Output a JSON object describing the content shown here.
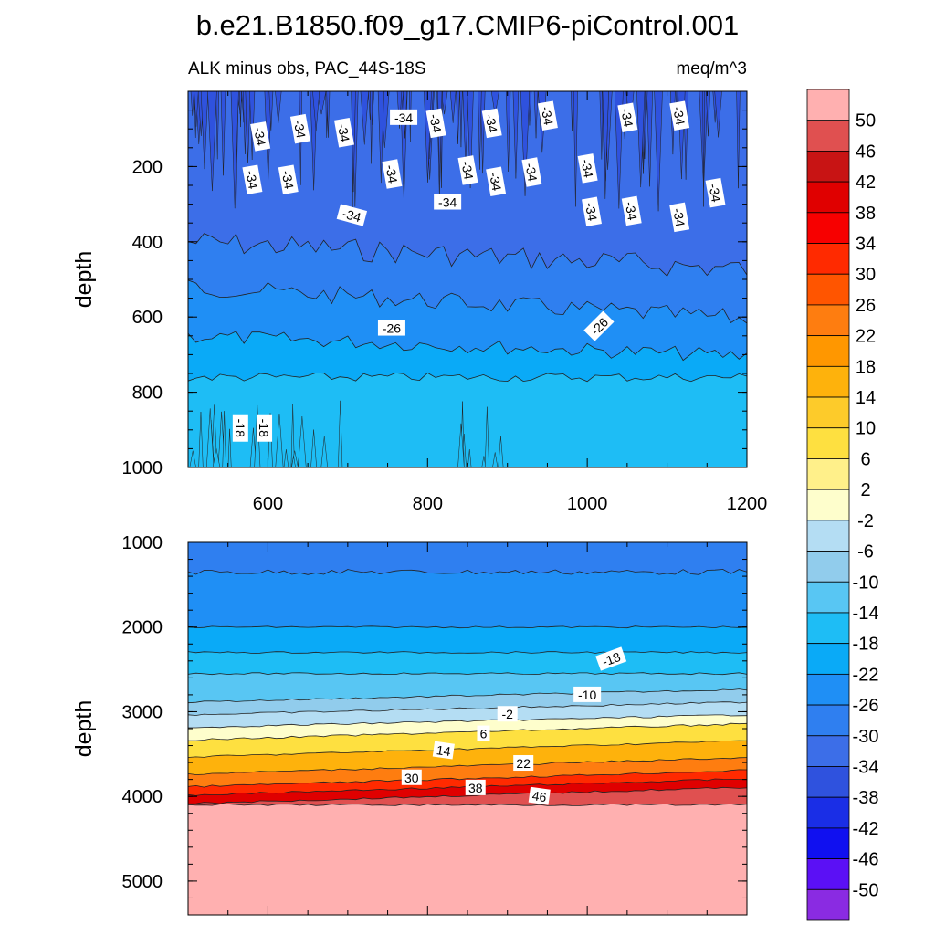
{
  "figure": {
    "title": "b.e21.B1850.f09_g17.CMIP6-piControl.001",
    "subtitle_left": "ALK minus obs, PAC_44S-18S",
    "subtitle_right": "meq/m^3"
  },
  "colors": {
    "levels": [
      -54,
      -50,
      -46,
      -42,
      -38,
      -34,
      -30,
      -26,
      -22,
      -18,
      -14,
      -10,
      -6,
      -2,
      2,
      6,
      10,
      14,
      18,
      22,
      26,
      30,
      34,
      38,
      42,
      46,
      50,
      54
    ],
    "fills": [
      "#8a2be2",
      "#5b10f5",
      "#1010f0",
      "#1a2ee6",
      "#2f52de",
      "#3c6ee8",
      "#2f7ff0",
      "#1f8ff5",
      "#0aaaf7",
      "#1ebdf5",
      "#58c6f3",
      "#91ccec",
      "#b4ddf3",
      "#fefecc",
      "#fff08a",
      "#fee040",
      "#fdcb2a",
      "#feb20c",
      "#ff9700",
      "#fe7d10",
      "#ff5500",
      "#ff2a00",
      "#f70000",
      "#e00000",
      "#c81414",
      "#e05050",
      "#ffb0b0"
    ]
  },
  "chart_data": [
    {
      "type": "contour",
      "panel": "upper",
      "title": "ALK minus obs, PAC_44S-18S",
      "units": "meq/m^3",
      "xlabel": "",
      "ylabel": "depth",
      "xlim": [
        500,
        1200
      ],
      "ylim": [
        0,
        1000
      ],
      "y_inverted": true,
      "x_ticks": [
        600,
        800,
        1000,
        1200
      ],
      "y_ticks": [
        200,
        400,
        600,
        800,
        1000
      ],
      "layers": [
        {
          "value": -34,
          "depth_top": 0,
          "depth_bottom": 400
        },
        {
          "value": -30,
          "depth_top": 400,
          "depth_bottom": 520
        },
        {
          "value": -26,
          "depth_top": 520,
          "depth_bottom": 650
        },
        {
          "value": -22,
          "depth_top": 650,
          "depth_bottom": 760
        },
        {
          "value": -18,
          "depth_top": 760,
          "depth_bottom": 1000
        }
      ],
      "contour_labels": [
        {
          "text": "-34",
          "x": 770,
          "depth": 70
        },
        {
          "text": "-34",
          "x": 590,
          "depth": 120
        },
        {
          "text": "-34",
          "x": 640,
          "depth": 100
        },
        {
          "text": "-34",
          "x": 695,
          "depth": 110
        },
        {
          "text": "-34",
          "x": 810,
          "depth": 85
        },
        {
          "text": "-34",
          "x": 880,
          "depth": 85
        },
        {
          "text": "-34",
          "x": 950,
          "depth": 65
        },
        {
          "text": "-34",
          "x": 1050,
          "depth": 70
        },
        {
          "text": "-34",
          "x": 1115,
          "depth": 65
        },
        {
          "text": "-34",
          "x": 580,
          "depth": 235
        },
        {
          "text": "-34",
          "x": 625,
          "depth": 235
        },
        {
          "text": "-34",
          "x": 755,
          "depth": 220
        },
        {
          "text": "-34",
          "x": 850,
          "depth": 210
        },
        {
          "text": "-34",
          "x": 930,
          "depth": 215
        },
        {
          "text": "-34",
          "x": 1000,
          "depth": 205
        },
        {
          "text": "-34",
          "x": 885,
          "depth": 240
        },
        {
          "text": "-34",
          "x": 1160,
          "depth": 270
        },
        {
          "text": "-34",
          "x": 825,
          "depth": 295
        },
        {
          "text": "-34",
          "x": 705,
          "depth": 330
        },
        {
          "text": "-34",
          "x": 1005,
          "depth": 320
        },
        {
          "text": "-34",
          "x": 1055,
          "depth": 318
        },
        {
          "text": "-34",
          "x": 1115,
          "depth": 335
        },
        {
          "text": "-26",
          "x": 755,
          "depth": 630
        },
        {
          "text": "-26",
          "x": 1015,
          "depth": 625
        },
        {
          "text": "-18",
          "x": 565,
          "depth": 895
        },
        {
          "text": "-18",
          "x": 595,
          "depth": 895
        }
      ]
    },
    {
      "type": "contour",
      "panel": "lower",
      "xlabel": "",
      "ylabel": "depth",
      "xlim": [
        500,
        1200
      ],
      "ylim": [
        1000,
        5400
      ],
      "y_inverted": true,
      "y_ticks": [
        1000,
        2000,
        3000,
        4000,
        5000
      ],
      "layers": [
        {
          "value": -30,
          "depth_top": 1000,
          "depth_bottom": 1350
        },
        {
          "value": -26,
          "depth_top": 1350,
          "depth_bottom": 2000
        },
        {
          "value": -22,
          "depth_top": 2000,
          "depth_bottom": 2300
        },
        {
          "value": -18,
          "depth_top": 2300,
          "depth_bottom": 2550
        },
        {
          "value": -14,
          "depth_top": 2550,
          "depth_bottom": 2800
        },
        {
          "value": -10,
          "depth_top": 2800,
          "depth_bottom": 2950
        },
        {
          "value": -6,
          "depth_top": 2950,
          "depth_bottom": 3100
        },
        {
          "value": -2,
          "depth_top": 3100,
          "depth_bottom": 3250
        },
        {
          "value": 6,
          "depth_top": 3250,
          "depth_bottom": 3450
        },
        {
          "value": 14,
          "depth_top": 3450,
          "depth_bottom": 3650
        },
        {
          "value": 22,
          "depth_top": 3650,
          "depth_bottom": 3800
        },
        {
          "value": 30,
          "depth_top": 3800,
          "depth_bottom": 3900
        },
        {
          "value": 38,
          "depth_top": 3900,
          "depth_bottom": 4000
        },
        {
          "value": 46,
          "depth_top": 4000,
          "depth_bottom": 4100
        },
        {
          "value": 52,
          "depth_top": 4100,
          "depth_bottom": 5400
        }
      ],
      "contour_labels": [
        {
          "text": "-18",
          "x": 1030,
          "depth": 2380
        },
        {
          "text": "-10",
          "x": 1000,
          "depth": 2800
        },
        {
          "text": "-2",
          "x": 900,
          "depth": 3030
        },
        {
          "text": "6",
          "x": 870,
          "depth": 3260
        },
        {
          "text": "14",
          "x": 820,
          "depth": 3460
        },
        {
          "text": "22",
          "x": 920,
          "depth": 3610
        },
        {
          "text": "30",
          "x": 780,
          "depth": 3780
        },
        {
          "text": "38",
          "x": 860,
          "depth": 3900
        },
        {
          "text": "46",
          "x": 940,
          "depth": 4000
        }
      ]
    }
  ],
  "colorbar": {
    "labels": [
      "50",
      "46",
      "42",
      "38",
      "34",
      "30",
      "26",
      "22",
      "18",
      "14",
      "10",
      "6",
      "2",
      "-2",
      "-6",
      "-10",
      "-14",
      "-18",
      "-22",
      "-26",
      "-30",
      "-34",
      "-38",
      "-42",
      "-46",
      "-50"
    ]
  }
}
